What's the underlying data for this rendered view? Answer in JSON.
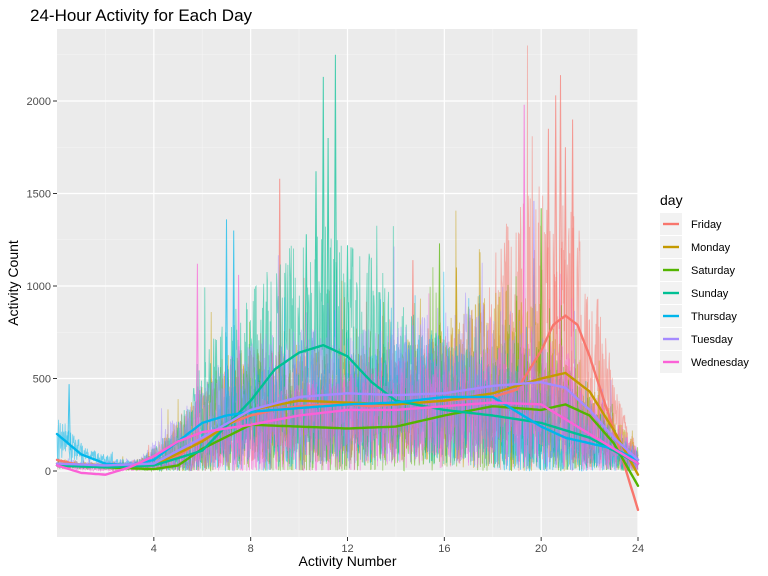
{
  "chart_data": {
    "type": "line",
    "title": "24-Hour Activity for Each Day",
    "xlabel": "Activity Number",
    "ylabel": "Activity Count",
    "xlim": [
      0,
      24
    ],
    "ylim": [
      -300,
      2350
    ],
    "x_ticks": [
      4,
      8,
      12,
      16,
      20,
      24
    ],
    "y_ticks": [
      0,
      500,
      1000,
      1500,
      2000
    ],
    "grid": true,
    "legend": {
      "title": "day",
      "placement": "right"
    },
    "series": [
      {
        "name": "Friday",
        "color": "#F8766D",
        "smooth": {
          "x": [
            0,
            1,
            2,
            3,
            4,
            5,
            6,
            7,
            8,
            9,
            10,
            11,
            12,
            13,
            14,
            15,
            16,
            17,
            18,
            19,
            20,
            20.5,
            21,
            21.5,
            22,
            23,
            24
          ],
          "y": [
            60,
            30,
            20,
            20,
            40,
            80,
            170,
            250,
            300,
            330,
            350,
            360,
            360,
            350,
            360,
            370,
            380,
            390,
            400,
            440,
            650,
            790,
            840,
            790,
            620,
            220,
            -210
          ]
        },
        "raw": {
          "baseline": [
            40,
            30,
            25,
            25,
            50,
            100,
            200,
            280,
            320,
            340,
            360,
            370,
            370,
            360,
            370,
            380,
            390,
            400,
            420,
            470,
            640,
            750,
            800,
            740,
            560,
            250,
            60
          ],
          "spread": [
            30,
            20,
            15,
            15,
            40,
            100,
            200,
            280,
            330,
            350,
            350,
            350,
            350,
            330,
            340,
            360,
            380,
            400,
            450,
            550,
            800,
            900,
            900,
            800,
            650,
            250,
            80
          ],
          "peaks": [
            [
              9.2,
              1580
            ],
            [
              14.7,
              1140
            ],
            [
              20.6,
              2030
            ],
            [
              20.8,
              2140
            ],
            [
              21.3,
              1900
            ],
            [
              21.0,
              1750
            ],
            [
              20.3,
              1850
            ]
          ]
        }
      },
      {
        "name": "Monday",
        "color": "#C49A00",
        "smooth": {
          "x": [
            0,
            2,
            4,
            6,
            8,
            10,
            12,
            14,
            16,
            18,
            20,
            21,
            22,
            23,
            24
          ],
          "y": [
            40,
            30,
            30,
            160,
            330,
            380,
            370,
            360,
            380,
            420,
            500,
            530,
            430,
            220,
            -20
          ]
        },
        "raw": {
          "baseline": [
            40,
            30,
            30,
            150,
            320,
            370,
            360,
            350,
            370,
            410,
            480,
            500,
            420,
            230,
            60
          ],
          "spread": [
            30,
            20,
            30,
            180,
            350,
            400,
            380,
            370,
            390,
            440,
            550,
            600,
            500,
            250,
            80
          ],
          "peaks": [
            [
              16.5,
              1100
            ],
            [
              19.7,
              1150
            ]
          ]
        }
      },
      {
        "name": "Saturday",
        "color": "#53B400",
        "smooth": {
          "x": [
            0,
            2,
            4,
            5,
            6,
            8,
            10,
            12,
            14,
            16,
            18,
            20,
            21,
            22,
            23,
            24
          ],
          "y": [
            30,
            20,
            10,
            30,
            120,
            250,
            240,
            230,
            240,
            300,
            350,
            330,
            360,
            300,
            150,
            -80
          ]
        },
        "raw": {
          "baseline": [
            30,
            20,
            10,
            20,
            100,
            240,
            230,
            220,
            230,
            290,
            340,
            320,
            350,
            290,
            160,
            40
          ],
          "spread": [
            20,
            15,
            10,
            30,
            150,
            300,
            300,
            280,
            300,
            350,
            400,
            400,
            450,
            380,
            200,
            60
          ],
          "peaks": [
            [
              15.8,
              1230
            ],
            [
              20.0,
              1420
            ]
          ]
        }
      },
      {
        "name": "Sunday",
        "color": "#00C094",
        "smooth": {
          "x": [
            0,
            2,
            4,
            6,
            8,
            9,
            10,
            11,
            12,
            13,
            14,
            16,
            18,
            20,
            22,
            24
          ],
          "y": [
            30,
            20,
            30,
            110,
            380,
            550,
            640,
            680,
            620,
            480,
            380,
            330,
            300,
            260,
            180,
            40
          ]
        },
        "raw": {
          "baseline": [
            30,
            20,
            30,
            100,
            370,
            530,
            620,
            660,
            600,
            470,
            370,
            320,
            290,
            250,
            170,
            50
          ],
          "spread": [
            20,
            15,
            30,
            120,
            400,
            550,
            700,
            800,
            700,
            500,
            400,
            350,
            330,
            300,
            200,
            60
          ],
          "peaks": [
            [
              11.0,
              2130
            ],
            [
              11.5,
              2250
            ],
            [
              11.2,
              1800
            ],
            [
              10.7,
              1620
            ],
            [
              12.0,
              1220
            ],
            [
              10.3,
              1280
            ]
          ]
        }
      },
      {
        "name": "Thursday",
        "color": "#00B6EB",
        "smooth": {
          "x": [
            0,
            1,
            2,
            3,
            4,
            5,
            6,
            7,
            8,
            10,
            12,
            14,
            16,
            18,
            19,
            20,
            21,
            22,
            23,
            24
          ],
          "y": [
            200,
            90,
            40,
            30,
            60,
            160,
            260,
            300,
            320,
            340,
            360,
            370,
            400,
            400,
            320,
            240,
            180,
            150,
            120,
            60
          ]
        },
        "raw": {
          "baseline": [
            180,
            80,
            40,
            30,
            60,
            150,
            250,
            290,
            310,
            330,
            350,
            360,
            390,
            390,
            310,
            230,
            170,
            140,
            110,
            60
          ],
          "spread": [
            150,
            50,
            30,
            30,
            80,
            200,
            300,
            350,
            350,
            350,
            370,
            380,
            420,
            420,
            350,
            280,
            220,
            180,
            140,
            70
          ],
          "peaks": [
            [
              0.5,
              470
            ],
            [
              7.0,
              1360
            ],
            [
              7.3,
              1300
            ]
          ]
        }
      },
      {
        "name": "Tuesday",
        "color": "#A58AFF",
        "smooth": {
          "x": [
            0,
            2,
            4,
            6,
            8,
            10,
            12,
            14,
            16,
            18,
            20,
            21,
            22,
            23,
            24
          ],
          "y": [
            40,
            30,
            40,
            180,
            330,
            400,
            420,
            410,
            420,
            460,
            480,
            450,
            330,
            180,
            60
          ]
        },
        "raw": {
          "baseline": [
            40,
            30,
            40,
            170,
            320,
            390,
            410,
            400,
            410,
            450,
            470,
            440,
            320,
            190,
            60
          ],
          "spread": [
            30,
            20,
            40,
            200,
            350,
            420,
            430,
            420,
            430,
            480,
            520,
            500,
            400,
            220,
            70
          ],
          "peaks": [
            [
              19.7,
              1460
            ]
          ]
        }
      },
      {
        "name": "Wednesday",
        "color": "#FB61D7",
        "smooth": {
          "x": [
            0,
            1,
            2,
            3,
            4,
            5,
            6,
            7,
            8,
            10,
            12,
            14,
            16,
            18,
            20,
            22,
            24
          ],
          "y": [
            30,
            -10,
            -20,
            20,
            80,
            160,
            210,
            230,
            250,
            300,
            330,
            330,
            350,
            370,
            360,
            200,
            40
          ]
        },
        "raw": {
          "baseline": [
            30,
            10,
            10,
            30,
            80,
            150,
            200,
            220,
            240,
            290,
            320,
            320,
            340,
            360,
            350,
            190,
            50
          ],
          "spread": [
            20,
            15,
            15,
            30,
            100,
            200,
            300,
            320,
            330,
            350,
            360,
            360,
            380,
            400,
            420,
            250,
            70
          ],
          "peaks": [
            [
              5.8,
              1120
            ],
            [
              19.3,
              1980
            ],
            [
              7.5,
              1060
            ]
          ]
        }
      }
    ]
  }
}
